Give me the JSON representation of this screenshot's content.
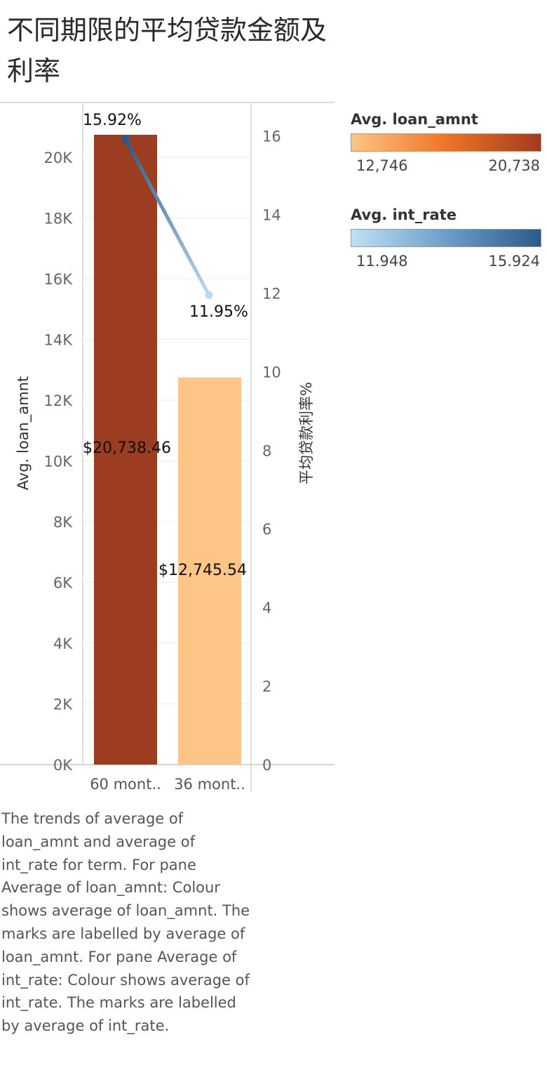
{
  "title": "不同期限的平均贷款金额及利率",
  "chart_data": {
    "type": "bar",
    "categories": [
      "60 mont..",
      "36 mont.."
    ],
    "left_axis": {
      "label": "Avg. loan_amnt",
      "ylim": [
        0,
        21800
      ],
      "ticks": [
        "0K",
        "2K",
        "4K",
        "6K",
        "8K",
        "10K",
        "12K",
        "14K",
        "16K",
        "18K",
        "20K"
      ],
      "tick_values": [
        0,
        2000,
        4000,
        6000,
        8000,
        10000,
        12000,
        14000,
        16000,
        18000,
        20000
      ]
    },
    "right_axis": {
      "label": "平均贷款利率%",
      "ylim": [
        0,
        16.85
      ],
      "ticks": [
        "0",
        "2",
        "4",
        "6",
        "8",
        "10",
        "12",
        "14",
        "16"
      ],
      "tick_values": [
        0,
        2,
        4,
        6,
        8,
        10,
        12,
        14,
        16
      ]
    },
    "series": [
      {
        "type": "bar",
        "axis": "left",
        "values": [
          20738.46,
          12745.54
        ],
        "labels": [
          "$20,738.46",
          "$12,745.54"
        ],
        "colors": [
          "#9c3c20",
          "#fdc586"
        ]
      },
      {
        "type": "line",
        "axis": "right",
        "values": [
          15.92,
          11.95
        ],
        "labels": [
          "15.92%",
          "11.95%"
        ],
        "colors": [
          "#2b5a8a",
          "#b9dbf0"
        ]
      }
    ],
    "grid": true
  },
  "legends": [
    {
      "title": "Avg. loan_amnt",
      "min": "12,746",
      "max": "20,738",
      "gradient": [
        "#fdc586",
        "#ee7526",
        "#a23a20"
      ]
    },
    {
      "title": "Avg. int_rate",
      "min": "11.948",
      "max": "15.924",
      "gradient": [
        "#bfe0f4",
        "#6b9ecb",
        "#2a5b8c"
      ]
    }
  ],
  "description": "The trends of average of loan_amnt and average of int_rate for term.  For pane Average of loan_amnt:  Colour shows average of loan_amnt.  The marks are labelled by average of loan_amnt.  For pane Average of int_rate:  Colour shows average of int_rate.  The marks are labelled by average of int_rate."
}
